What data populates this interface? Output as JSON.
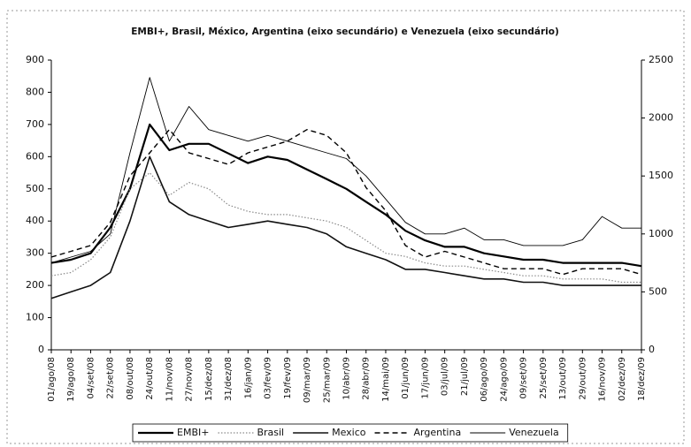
{
  "chart_data": {
    "type": "line",
    "title": "EMBI+, Brasil, México, Argentina (eixo secundário) e Venezuela (eixo secundário)",
    "categories": [
      "01/ago/08",
      "19/ago/08",
      "04/set/08",
      "22/set/08",
      "08/out/08",
      "24/out/08",
      "11/nov/08",
      "27/nov/08",
      "15/dez/08",
      "31/dez/08",
      "16/jan/09",
      "03/fev/09",
      "19/fev/09",
      "09/mar/09",
      "25/mar/09",
      "10/abr/09",
      "28/abr/09",
      "14/mai/09",
      "01/jun/09",
      "17/jun/09",
      "03/jul/09",
      "21/jul/09",
      "06/ago/09",
      "24/ago/09",
      "09/set/09",
      "25/set/09",
      "13/out/09",
      "29/out/09",
      "16/nov/09",
      "02/dez/09",
      "18/dez/09"
    ],
    "series": [
      {
        "name": "EMBI+",
        "color": "#000000",
        "line_style": "solid",
        "width": 2.2,
        "values": [
          270,
          280,
          300,
          380,
          500,
          700,
          620,
          640,
          640,
          610,
          580,
          600,
          590,
          560,
          530,
          500,
          460,
          420,
          370,
          340,
          320,
          320,
          300,
          290,
          280,
          280,
          270,
          270,
          270,
          270,
          260
        ]
      },
      {
        "name": "Brasil",
        "color": "#8a8a8a",
        "line_style": "dotted",
        "width": 1.2,
        "values": [
          230,
          240,
          280,
          350,
          500,
          550,
          480,
          520,
          500,
          450,
          430,
          420,
          420,
          410,
          400,
          380,
          340,
          300,
          290,
          270,
          260,
          260,
          250,
          240,
          230,
          230,
          220,
          220,
          220,
          210,
          210
        ]
      },
      {
        "name": "Mexico",
        "color": "#111111",
        "line_style": "solid",
        "width": 1.6,
        "values": [
          160,
          180,
          200,
          240,
          400,
          600,
          460,
          420,
          400,
          380,
          390,
          400,
          390,
          380,
          360,
          320,
          300,
          280,
          250,
          250,
          240,
          230,
          220,
          220,
          210,
          210,
          200,
          200,
          200,
          200,
          200
        ]
      },
      {
        "name": "Argentina",
        "color": "#000000",
        "line_style": "dashed",
        "width": 1.4,
        "axis": "y2",
        "values": [
          800,
          850,
          900,
          1100,
          1500,
          1700,
          1900,
          1700,
          1650,
          1600,
          1700,
          1750,
          1800,
          1900,
          1850,
          1700,
          1400,
          1200,
          900,
          800,
          850,
          800,
          750,
          700,
          700,
          700,
          650,
          700,
          700,
          700,
          650
        ]
      },
      {
        "name": "Venezuela",
        "color": "#000000",
        "line_style": "solid",
        "width": 0.9,
        "axis": "y2",
        "values": [
          750,
          800,
          850,
          1000,
          1700,
          2350,
          1800,
          2100,
          1900,
          1850,
          1800,
          1850,
          1800,
          1750,
          1700,
          1650,
          1500,
          1300,
          1100,
          1000,
          1000,
          1050,
          950,
          950,
          900,
          900,
          900,
          950,
          1150,
          1050,
          1050
        ]
      }
    ],
    "ylim": [
      0,
      900
    ],
    "yticks": [
      0,
      100,
      200,
      300,
      400,
      500,
      600,
      700,
      800,
      900
    ],
    "y2lim": [
      0,
      2500
    ],
    "y2ticks": [
      0,
      500,
      1000,
      1500,
      2000,
      2500
    ],
    "legend": "bottom"
  }
}
